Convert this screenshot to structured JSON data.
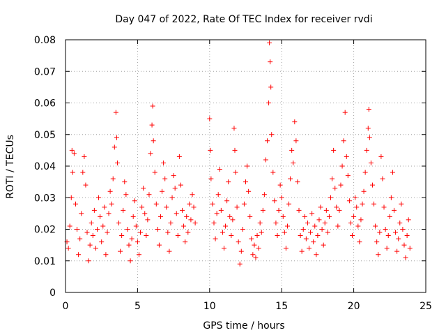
{
  "chart_data": {
    "type": "scatter",
    "title": "Day 047 of 2022, Rate Of TEC Index for receiver rvdi",
    "xlabel": "GPS time / hours",
    "ylabel": "ROTI / TECUs",
    "xlim": [
      0,
      25
    ],
    "ylim": [
      0,
      0.08
    ],
    "xticks": [
      0,
      5,
      10,
      15,
      20,
      25
    ],
    "yticks": [
      0,
      0.01,
      0.02,
      0.03,
      0.04,
      0.05,
      0.06,
      0.07,
      0.08
    ],
    "xtick_labels": [
      "0",
      "5",
      "10",
      "15",
      "20",
      "25"
    ],
    "ytick_labels": [
      "0",
      "0.01",
      "0.02",
      "0.03",
      "0.04",
      "0.05",
      "0.06",
      "0.07",
      "0.08"
    ],
    "grid": true,
    "marker": "+",
    "color": "#ff0000",
    "series": [
      {
        "values_note_points": [
          [
            0.1,
            0.016
          ],
          [
            0.2,
            0.014
          ],
          [
            0.3,
            0.021
          ],
          [
            0.4,
            0.03
          ],
          [
            0.45,
            0.045
          ],
          [
            0.5,
            0.038
          ],
          [
            0.6,
            0.044
          ],
          [
            0.7,
            0.028
          ],
          [
            0.8,
            0.02
          ],
          [
            0.9,
            0.012
          ],
          [
            1.0,
            0.017
          ],
          [
            1.1,
            0.025
          ],
          [
            1.2,
            0.038
          ],
          [
            1.3,
            0.043
          ],
          [
            1.4,
            0.034
          ],
          [
            1.5,
            0.019
          ],
          [
            1.6,
            0.01
          ],
          [
            1.7,
            0.015
          ],
          [
            1.8,
            0.022
          ],
          [
            1.9,
            0.018
          ],
          [
            2.0,
            0.026
          ],
          [
            2.1,
            0.014
          ],
          [
            2.2,
            0.02
          ],
          [
            2.3,
            0.03
          ],
          [
            2.4,
            0.024
          ],
          [
            2.5,
            0.016
          ],
          [
            2.6,
            0.021
          ],
          [
            2.7,
            0.027
          ],
          [
            2.8,
            0.012
          ],
          [
            2.9,
            0.019
          ],
          [
            3.0,
            0.025
          ],
          [
            3.1,
            0.032
          ],
          [
            3.2,
            0.028
          ],
          [
            3.3,
            0.036
          ],
          [
            3.4,
            0.046
          ],
          [
            3.5,
            0.057
          ],
          [
            3.55,
            0.049
          ],
          [
            3.6,
            0.041
          ],
          [
            3.7,
            0.022
          ],
          [
            3.8,
            0.013
          ],
          [
            3.9,
            0.018
          ],
          [
            4.0,
            0.026
          ],
          [
            4.1,
            0.035
          ],
          [
            4.2,
            0.031
          ],
          [
            4.3,
            0.02
          ],
          [
            4.4,
            0.015
          ],
          [
            4.5,
            0.01
          ],
          [
            4.6,
            0.017
          ],
          [
            4.7,
            0.024
          ],
          [
            4.8,
            0.029
          ],
          [
            4.9,
            0.021
          ],
          [
            5.0,
            0.016
          ],
          [
            5.1,
            0.012
          ],
          [
            5.2,
            0.019
          ],
          [
            5.3,
            0.027
          ],
          [
            5.4,
            0.033
          ],
          [
            5.5,
            0.025
          ],
          [
            5.6,
            0.018
          ],
          [
            5.7,
            0.023
          ],
          [
            5.8,
            0.031
          ],
          [
            5.9,
            0.044
          ],
          [
            6.0,
            0.053
          ],
          [
            6.05,
            0.059
          ],
          [
            6.1,
            0.048
          ],
          [
            6.2,
            0.038
          ],
          [
            6.3,
            0.028
          ],
          [
            6.4,
            0.02
          ],
          [
            6.5,
            0.015
          ],
          [
            6.6,
            0.024
          ],
          [
            6.7,
            0.032
          ],
          [
            6.8,
            0.041
          ],
          [
            6.9,
            0.036
          ],
          [
            7.0,
            0.027
          ],
          [
            7.1,
            0.019
          ],
          [
            7.2,
            0.013
          ],
          [
            7.3,
            0.022
          ],
          [
            7.4,
            0.03
          ],
          [
            7.5,
            0.037
          ],
          [
            7.6,
            0.033
          ],
          [
            7.7,
            0.025
          ],
          [
            7.8,
            0.018
          ],
          [
            7.9,
            0.043
          ],
          [
            8.0,
            0.034
          ],
          [
            8.1,
            0.026
          ],
          [
            8.2,
            0.021
          ],
          [
            8.3,
            0.016
          ],
          [
            8.4,
            0.024
          ],
          [
            8.5,
            0.019
          ],
          [
            8.6,
            0.028
          ],
          [
            8.7,
            0.023
          ],
          [
            8.8,
            0.031
          ],
          [
            8.9,
            0.027
          ],
          [
            9.0,
            0.022
          ],
          [
            10.0,
            0.055
          ],
          [
            10.05,
            0.045
          ],
          [
            10.1,
            0.036
          ],
          [
            10.2,
            0.028
          ],
          [
            10.3,
            0.022
          ],
          [
            10.4,
            0.017
          ],
          [
            10.5,
            0.025
          ],
          [
            10.6,
            0.031
          ],
          [
            10.7,
            0.039
          ],
          [
            10.8,
            0.026
          ],
          [
            10.9,
            0.019
          ],
          [
            11.0,
            0.014
          ],
          [
            11.1,
            0.021
          ],
          [
            11.2,
            0.029
          ],
          [
            11.3,
            0.035
          ],
          [
            11.4,
            0.024
          ],
          [
            11.5,
            0.018
          ],
          [
            11.6,
            0.023
          ],
          [
            11.7,
            0.052
          ],
          [
            11.75,
            0.045
          ],
          [
            11.8,
            0.038
          ],
          [
            11.9,
            0.027
          ],
          [
            12.0,
            0.016
          ],
          [
            12.1,
            0.009
          ],
          [
            12.2,
            0.013
          ],
          [
            12.3,
            0.02
          ],
          [
            12.4,
            0.028
          ],
          [
            12.5,
            0.035
          ],
          [
            12.6,
            0.04
          ],
          [
            12.7,
            0.032
          ],
          [
            12.8,
            0.024
          ],
          [
            12.9,
            0.017
          ],
          [
            13.0,
            0.012
          ],
          [
            13.1,
            0.015
          ],
          [
            13.2,
            0.011
          ],
          [
            13.3,
            0.018
          ],
          [
            13.4,
            0.014
          ],
          [
            13.5,
            0.022
          ],
          [
            13.6,
            0.019
          ],
          [
            13.7,
            0.026
          ],
          [
            13.8,
            0.031
          ],
          [
            13.9,
            0.042
          ],
          [
            14.0,
            0.048
          ],
          [
            14.1,
            0.06
          ],
          [
            14.15,
            0.079
          ],
          [
            14.2,
            0.073
          ],
          [
            14.25,
            0.065
          ],
          [
            14.3,
            0.05
          ],
          [
            14.4,
            0.038
          ],
          [
            14.5,
            0.029
          ],
          [
            14.6,
            0.022
          ],
          [
            14.7,
            0.018
          ],
          [
            14.8,
            0.026
          ],
          [
            14.9,
            0.034
          ],
          [
            15.0,
            0.03
          ],
          [
            15.1,
            0.024
          ],
          [
            15.2,
            0.019
          ],
          [
            15.3,
            0.014
          ],
          [
            15.4,
            0.021
          ],
          [
            15.5,
            0.028
          ],
          [
            15.6,
            0.036
          ],
          [
            15.7,
            0.045
          ],
          [
            15.8,
            0.041
          ],
          [
            15.9,
            0.054
          ],
          [
            16.0,
            0.048
          ],
          [
            16.1,
            0.035
          ],
          [
            16.2,
            0.026
          ],
          [
            16.3,
            0.018
          ],
          [
            16.4,
            0.013
          ],
          [
            16.5,
            0.02
          ],
          [
            16.6,
            0.024
          ],
          [
            16.7,
            0.017
          ],
          [
            16.8,
            0.022
          ],
          [
            16.9,
            0.014
          ],
          [
            17.0,
            0.019
          ],
          [
            17.1,
            0.025
          ],
          [
            17.2,
            0.016
          ],
          [
            17.3,
            0.021
          ],
          [
            17.4,
            0.012
          ],
          [
            17.5,
            0.018
          ],
          [
            17.6,
            0.023
          ],
          [
            17.7,
            0.027
          ],
          [
            17.8,
            0.02
          ],
          [
            17.9,
            0.015
          ],
          [
            18.0,
            0.022
          ],
          [
            18.1,
            0.026
          ],
          [
            18.2,
            0.019
          ],
          [
            18.3,
            0.024
          ],
          [
            18.4,
            0.03
          ],
          [
            18.5,
            0.036
          ],
          [
            18.6,
            0.045
          ],
          [
            18.7,
            0.033
          ],
          [
            18.8,
            0.027
          ],
          [
            18.9,
            0.021
          ],
          [
            19.0,
            0.026
          ],
          [
            19.1,
            0.034
          ],
          [
            19.2,
            0.04
          ],
          [
            19.3,
            0.048
          ],
          [
            19.4,
            0.057
          ],
          [
            19.5,
            0.043
          ],
          [
            19.6,
            0.037
          ],
          [
            19.7,
            0.029
          ],
          [
            19.8,
            0.022
          ],
          [
            19.9,
            0.018
          ],
          [
            20.0,
            0.024
          ],
          [
            20.1,
            0.03
          ],
          [
            20.2,
            0.027
          ],
          [
            20.3,
            0.021
          ],
          [
            20.4,
            0.016
          ],
          [
            20.5,
            0.023
          ],
          [
            20.6,
            0.028
          ],
          [
            20.7,
            0.032
          ],
          [
            20.8,
            0.038
          ],
          [
            20.9,
            0.045
          ],
          [
            21.0,
            0.052
          ],
          [
            21.05,
            0.058
          ],
          [
            21.1,
            0.049
          ],
          [
            21.2,
            0.041
          ],
          [
            21.3,
            0.034
          ],
          [
            21.4,
            0.028
          ],
          [
            21.5,
            0.021
          ],
          [
            21.6,
            0.016
          ],
          [
            21.7,
            0.012
          ],
          [
            21.8,
            0.019
          ],
          [
            21.9,
            0.043
          ],
          [
            22.0,
            0.036
          ],
          [
            22.1,
            0.027
          ],
          [
            22.2,
            0.02
          ],
          [
            22.3,
            0.014
          ],
          [
            22.4,
            0.018
          ],
          [
            22.5,
            0.024
          ],
          [
            22.6,
            0.03
          ],
          [
            22.7,
            0.038
          ],
          [
            22.8,
            0.026
          ],
          [
            22.9,
            0.019
          ],
          [
            23.0,
            0.013
          ],
          [
            23.1,
            0.017
          ],
          [
            23.2,
            0.022
          ],
          [
            23.3,
            0.028
          ],
          [
            23.4,
            0.02
          ],
          [
            23.5,
            0.015
          ],
          [
            23.6,
            0.011
          ],
          [
            23.7,
            0.018
          ],
          [
            23.8,
            0.023
          ],
          [
            23.9,
            0.014
          ]
        ]
      }
    ]
  }
}
